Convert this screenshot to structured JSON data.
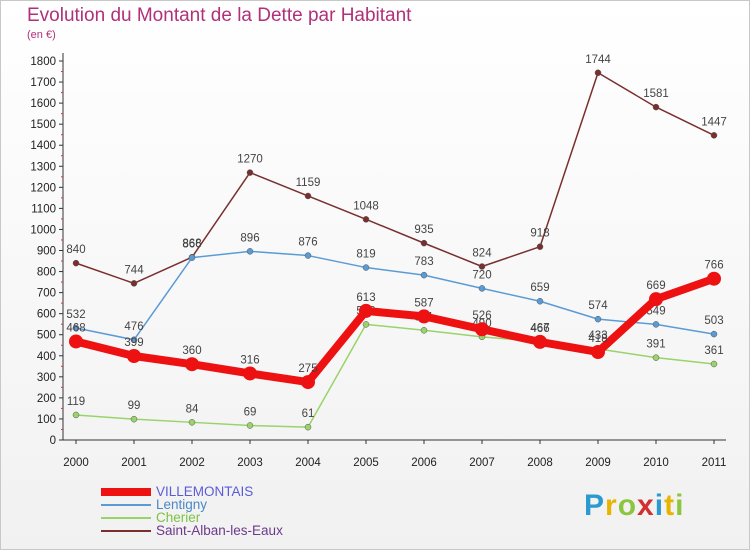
{
  "title": "Evolution du Montant de la Dette par Habitant",
  "unit": "(en €)",
  "logo": {
    "text": "Proxiti",
    "letter_colors": [
      "#2a9ad0",
      "#e8b400",
      "#8cc63f",
      "#d32f2f",
      "#2a9ad0",
      "#e8b400",
      "#8cc63f"
    ]
  },
  "colors": {
    "VILLEMONTAIS": "#ee1111",
    "Lentigny": "#5b9bd5",
    "Cherier": "#99d36a",
    "Saint-Alban-les-Eaux": "#7a2f2f"
  },
  "chart_data": {
    "type": "line",
    "x": [
      "2000",
      "2001",
      "2002",
      "2003",
      "2004",
      "2005",
      "2006",
      "2007",
      "2008",
      "2009",
      "2010",
      "2011"
    ],
    "ylim": [
      0,
      1800
    ],
    "yticks": [
      0,
      100,
      200,
      300,
      400,
      500,
      600,
      700,
      800,
      900,
      1000,
      1100,
      1200,
      1300,
      1400,
      1500,
      1600,
      1700,
      1800
    ],
    "grid": false,
    "legend_position": "bottom-left",
    "series": [
      {
        "name": "Saint-Alban-les-Eaux",
        "values": [
          840,
          744,
          868,
          1270,
          1159,
          1048,
          935,
          824,
          918,
          1744,
          1581,
          1447
        ]
      },
      {
        "name": "Lentigny",
        "values": [
          532,
          476,
          866,
          896,
          876,
          819,
          783,
          720,
          659,
          574,
          549,
          503
        ]
      },
      {
        "name": "Cherier",
        "values": [
          119,
          99,
          84,
          69,
          61,
          549,
          521,
          490,
          467,
          433,
          391,
          361
        ]
      },
      {
        "name": "VILLEMONTAIS",
        "values": [
          468,
          399,
          360,
          316,
          275,
          613,
          587,
          526,
          466,
          418,
          669,
          766
        ]
      }
    ]
  }
}
